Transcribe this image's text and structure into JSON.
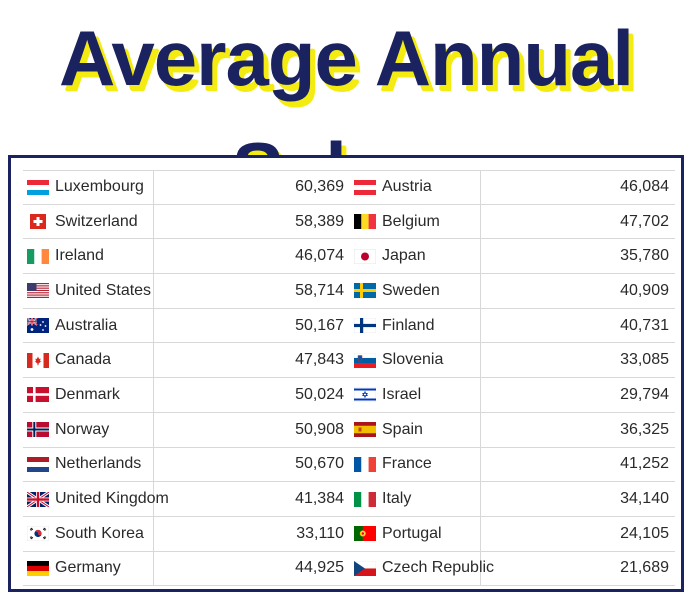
{
  "title": "Average Annual Salary",
  "rows": [
    {
      "left": {
        "country": "Luxembourg",
        "value": "60,369",
        "flag": "luxembourg-flag-icon"
      },
      "right": {
        "country": "Austria",
        "value": "46,084",
        "flag": "austria-flag-icon"
      }
    },
    {
      "left": {
        "country": "Switzerland",
        "value": "58,389",
        "flag": "switzerland-flag-icon"
      },
      "right": {
        "country": "Belgium",
        "value": "47,702",
        "flag": "belgium-flag-icon"
      }
    },
    {
      "left": {
        "country": "Ireland",
        "value": "46,074",
        "flag": "ireland-flag-icon"
      },
      "right": {
        "country": "Japan",
        "value": "35,780",
        "flag": "japan-flag-icon"
      }
    },
    {
      "left": {
        "country": "United States",
        "value": "58,714",
        "flag": "united-states-flag-icon"
      },
      "right": {
        "country": "Sweden",
        "value": "40,909",
        "flag": "sweden-flag-icon"
      }
    },
    {
      "left": {
        "country": "Australia",
        "value": "50,167",
        "flag": "australia-flag-icon"
      },
      "right": {
        "country": "Finland",
        "value": "40,731",
        "flag": "finland-flag-icon"
      }
    },
    {
      "left": {
        "country": "Canada",
        "value": "47,843",
        "flag": "canada-flag-icon"
      },
      "right": {
        "country": "Slovenia",
        "value": "33,085",
        "flag": "slovenia-flag-icon"
      }
    },
    {
      "left": {
        "country": "Denmark",
        "value": "50,024",
        "flag": "denmark-flag-icon"
      },
      "right": {
        "country": "Israel",
        "value": "29,794",
        "flag": "israel-flag-icon"
      }
    },
    {
      "left": {
        "country": "Norway",
        "value": "50,908",
        "flag": "norway-flag-icon"
      },
      "right": {
        "country": "Spain",
        "value": "36,325",
        "flag": "spain-flag-icon"
      }
    },
    {
      "left": {
        "country": "Netherlands",
        "value": "50,670",
        "flag": "netherlands-flag-icon"
      },
      "right": {
        "country": "France",
        "value": "41,252",
        "flag": "france-flag-icon"
      }
    },
    {
      "left": {
        "country": "United Kingdom",
        "value": "41,384",
        "flag": "united-kingdom-flag-icon"
      },
      "right": {
        "country": "Italy",
        "value": "34,140",
        "flag": "italy-flag-icon"
      }
    },
    {
      "left": {
        "country": "South Korea",
        "value": "33,110",
        "flag": "south-korea-flag-icon"
      },
      "right": {
        "country": "Portugal",
        "value": "24,105",
        "flag": "portugal-flag-icon"
      }
    },
    {
      "left": {
        "country": "Germany",
        "value": "44,925",
        "flag": "germany-flag-icon"
      },
      "right": {
        "country": "Czech Republic",
        "value": "21,689",
        "flag": "czech-republic-flag-icon"
      }
    }
  ],
  "colors": {
    "title": "#1b2260",
    "title_shadow": "#f4ec10",
    "frame": "#1b2260"
  }
}
